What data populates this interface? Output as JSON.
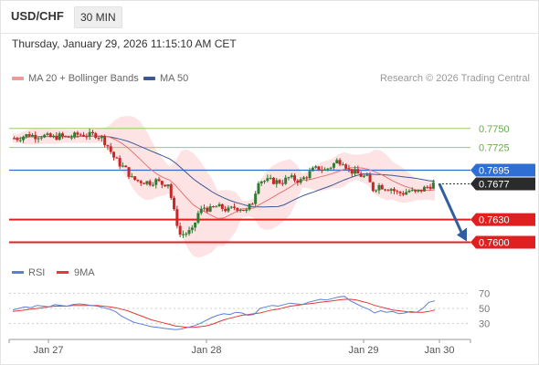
{
  "header": {
    "symbol": "USD/CHF",
    "timeframe": "30 MIN",
    "datetime": "Thursday, January 29, 2026 11:15:10 AM CET"
  },
  "legend": {
    "ma20_label": "MA 20 + Bollinger Bands",
    "ma50_label": "MA 50",
    "credit": "Research © 2026 Trading Central",
    "rsi_label": "RSI",
    "rsi_ma_label": "9MA"
  },
  "colors": {
    "up": "#2e7d32",
    "down": "#c62828",
    "ma20": "#e57373",
    "band_fill": "#fde3e3",
    "ma50": "#3b5998",
    "rsi": "#5b7fd4",
    "rsi_ma": "#e53935",
    "resistance_green": "#9ccc65",
    "pivot": "#2f6fd3",
    "support": "#e02020",
    "current": "#333333",
    "arrow": "#2f5f9e"
  },
  "chart_data": [
    {
      "type": "candlestick",
      "ylim": [
        0.7585,
        0.7775
      ],
      "x_ticks": [
        "Jan 27",
        "Jan 28",
        "Jan 29",
        "Jan 30"
      ],
      "close_path": [
        0.7737,
        0.7737,
        0.774,
        0.7742,
        0.774,
        0.7741,
        0.7739,
        0.7738,
        0.774,
        0.7738,
        0.7739,
        0.7742,
        0.7742,
        0.7741,
        0.7742,
        0.7738,
        0.7727,
        0.7712,
        0.7703,
        0.7696,
        0.7684,
        0.7681,
        0.768,
        0.7679,
        0.7681,
        0.7677,
        0.7678,
        0.764,
        0.761,
        0.7612,
        0.7615,
        0.7638,
        0.7646,
        0.7643,
        0.7647,
        0.7645,
        0.7642,
        0.7646,
        0.7645,
        0.7641,
        0.7653,
        0.7682,
        0.7681,
        0.7681,
        0.768,
        0.768,
        0.7685,
        0.7683,
        0.7681,
        0.7688,
        0.7695,
        0.7698,
        0.7695,
        0.77,
        0.7707,
        0.7707,
        0.7695,
        0.7692,
        0.7688,
        0.7685,
        0.767,
        0.7675,
        0.7672,
        0.7671,
        0.7665,
        0.7665,
        0.7668,
        0.7665,
        0.7669,
        0.7673,
        0.7677
      ],
      "levels": [
        {
          "value": 0.775,
          "label": "0.7750",
          "kind": "resistance"
        },
        {
          "value": 0.7725,
          "label": "0.7725",
          "kind": "resistance"
        },
        {
          "value": 0.7695,
          "label": "0.7695",
          "kind": "pivot"
        },
        {
          "value": 0.7677,
          "label": "0.7677",
          "kind": "current"
        },
        {
          "value": 0.763,
          "label": "0.7630",
          "kind": "support"
        },
        {
          "value": 0.76,
          "label": "0.7600",
          "kind": "support"
        }
      ],
      "forecast_arrow": {
        "from": 0.7677,
        "to": 0.76
      }
    },
    {
      "type": "line",
      "title": "RSI",
      "ylim": [
        20,
        80
      ],
      "y_ticks": [
        70,
        50,
        30
      ],
      "rsi": [
        48,
        50,
        52,
        51,
        54,
        53,
        52,
        55,
        54,
        53,
        55,
        56,
        55,
        54,
        53,
        51,
        49,
        46,
        40,
        36,
        32,
        30,
        28,
        26,
        25,
        24,
        23,
        22,
        23,
        25,
        27,
        30,
        34,
        38,
        41,
        43,
        42,
        45,
        44,
        41,
        42,
        50,
        52,
        54,
        53,
        55,
        57,
        56,
        55,
        58,
        60,
        62,
        61,
        63,
        65,
        66,
        60,
        56,
        52,
        49,
        44,
        47,
        45,
        46,
        43,
        44,
        46,
        45,
        50,
        58,
        60
      ],
      "ma9": [
        46,
        47,
        48,
        49,
        50,
        51,
        52,
        53,
        53,
        53,
        54,
        54,
        54,
        54,
        54,
        53,
        52,
        51,
        49,
        47,
        44,
        41,
        38,
        35,
        33,
        31,
        29,
        27,
        26,
        25,
        25,
        26,
        27,
        29,
        32,
        35,
        37,
        39,
        41,
        42,
        43,
        44,
        46,
        48,
        49,
        51,
        53,
        54,
        55,
        56,
        57,
        58,
        59,
        60,
        61,
        62,
        62,
        61,
        59,
        57,
        54,
        52,
        50,
        48,
        47,
        46,
        45,
        45,
        45,
        46,
        48
      ]
    }
  ]
}
